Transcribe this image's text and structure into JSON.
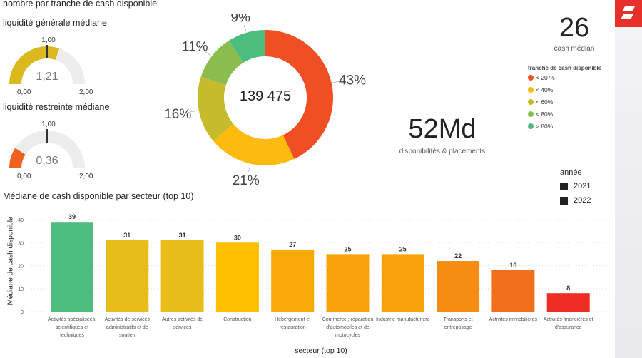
{
  "title": "nombre par tranche de cash disponible",
  "gauges": [
    {
      "label": "liquidité générale médiane",
      "value": 1.21,
      "value_text": "1,21",
      "min": "0,00",
      "max": "2,00",
      "target": "1,00",
      "color": "#d9b91d"
    },
    {
      "label": "liquidité restreinte médiane",
      "value": 0.36,
      "value_text": "0,36",
      "min": "0,00",
      "max": "2,00",
      "target": "1,00",
      "color": "#f0601e"
    }
  ],
  "donut": {
    "center_text": "139 475",
    "slices": [
      {
        "label": "43%",
        "value": 43,
        "color": "#f04e23"
      },
      {
        "label": "21%",
        "value": 21,
        "color": "#fdbb0f"
      },
      {
        "label": "16%",
        "value": 16,
        "color": "#c6bb2b"
      },
      {
        "label": "11%",
        "value": 11,
        "color": "#8bbd4e"
      },
      {
        "label": "9%",
        "value": 9,
        "color": "#4dbd7e"
      }
    ]
  },
  "kpi_cash": {
    "value": "26",
    "label": "cash médian"
  },
  "kpi_dispo": {
    "value": "52Md",
    "label": "disponibilités & placements"
  },
  "legend": {
    "title": "tranche de cash disponible",
    "items": [
      {
        "label": "< 20 %",
        "color": "#f04e23"
      },
      {
        "label": "< 40%",
        "color": "#fdbb0f"
      },
      {
        "label": "< 60%",
        "color": "#c6bb2b"
      },
      {
        "label": "< 80%",
        "color": "#8bbd4e"
      },
      {
        "label": "> 80%",
        "color": "#4dbd7e"
      }
    ]
  },
  "year_filter": {
    "title": "année",
    "items": [
      "2021",
      "2022"
    ]
  },
  "chart_data": {
    "type": "bar",
    "title": "Médiane de cash disponible par secteur (top 10)",
    "xlabel": "secteur (top 10)",
    "ylabel": "Médiane de cash disponible",
    "ylim": [
      0,
      40
    ],
    "yticks": [
      0,
      10,
      20,
      30,
      40
    ],
    "categories": [
      "Activités spécialisées, scientifiques et techniques",
      "Activités de services administratifs et de soutien",
      "Autres activités de services",
      "Construction",
      "Hébergement et restauration",
      "Commerce ; réparation d'automobiles et de motocycles",
      "Industrie manufacturière",
      "Transports et entreposage",
      "Activités immobilières",
      "Activités financières et d'assurance"
    ],
    "values": [
      39,
      31,
      31,
      30,
      27,
      25,
      25,
      22,
      18,
      8
    ],
    "colors": [
      "#4dbd7e",
      "#e8bd1a",
      "#e8bd1a",
      "#fdbf00",
      "#f9aa07",
      "#f7a20a",
      "#f7a20a",
      "#f58d12",
      "#f26f1e",
      "#ee2e24"
    ]
  }
}
